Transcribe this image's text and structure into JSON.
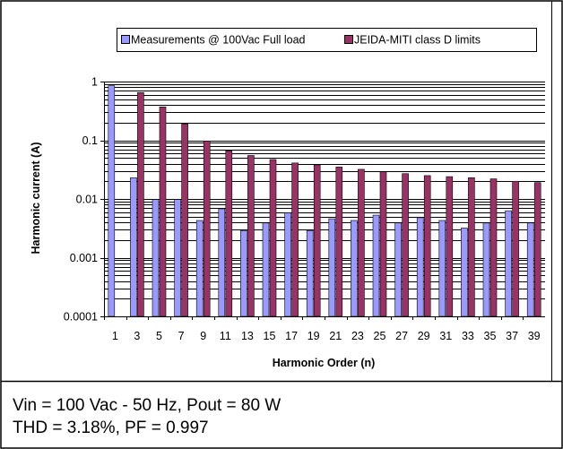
{
  "chart_data": {
    "type": "bar",
    "yscale": "log",
    "ylim": [
      0.0001,
      1
    ],
    "y_ticks": [
      "0.0001",
      "0.001",
      "0.01",
      "0.1",
      "1"
    ],
    "xlabel": "Harmonic Order (n)",
    "ylabel": "Harmonic current (A)",
    "legend_position": "top",
    "categories": [
      "1",
      "3",
      "5",
      "7",
      "9",
      "11",
      "13",
      "15",
      "17",
      "19",
      "21",
      "23",
      "25",
      "27",
      "29",
      "31",
      "33",
      "35",
      "37",
      "39"
    ],
    "series": [
      {
        "name": "Measurements @ 100Vac Full load",
        "color": "#9999ff",
        "values": [
          0.85,
          0.023,
          0.0098,
          0.0098,
          0.0043,
          0.0068,
          0.0029,
          0.0039,
          0.0058,
          0.0029,
          0.0046,
          0.0043,
          0.0053,
          0.0039,
          0.0048,
          0.0043,
          0.0032,
          0.0039,
          0.0063,
          0.0039
        ]
      },
      {
        "name": "JEIDA-MITI class D limits",
        "color": "#993366",
        "values": [
          null,
          0.65,
          0.37,
          0.19,
          0.097,
          0.066,
          0.055,
          0.047,
          0.041,
          0.038,
          0.035,
          0.032,
          0.029,
          0.027,
          0.025,
          0.024,
          0.023,
          0.022,
          0.02,
          0.019
        ]
      }
    ]
  },
  "caption": {
    "line1": "Vin = 100 Vac - 50 Hz, Pout = 80 W",
    "line2": "THD = 3.18%, PF = 0.997"
  }
}
